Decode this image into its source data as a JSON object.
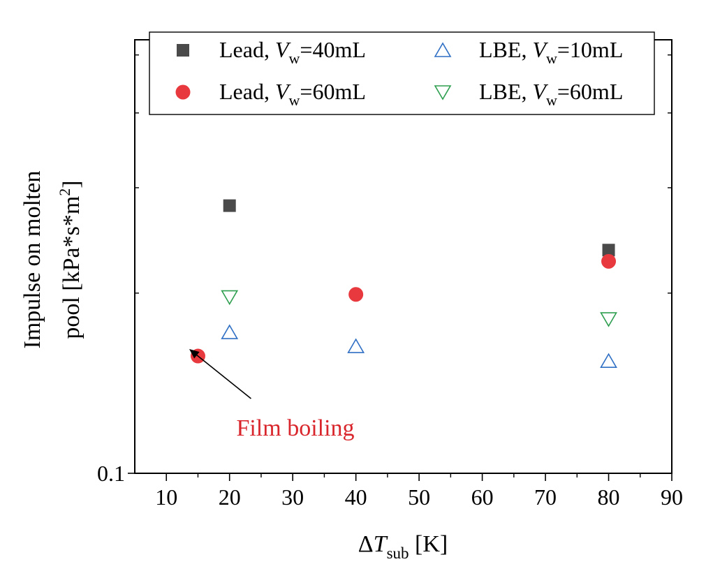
{
  "chart_data": {
    "type": "scatter",
    "xlabel": {
      "main": "ΔT",
      "sub": "sub",
      "unit": " [K]"
    },
    "ylabel": {
      "line1": "Impulse on molten",
      "line2_prefix": "pool [kPa*s*m",
      "line2_sup": "2",
      "line2_suffix": "]"
    },
    "x_ticks": [
      "10",
      "20",
      "30",
      "40",
      "50",
      "60",
      "70",
      "80",
      "90"
    ],
    "y_tick_labels": [
      {
        "label": "0.1",
        "value": 0.1
      }
    ],
    "xlim": [
      5,
      90
    ],
    "ylim_log": [
      0.1,
      0.53
    ],
    "y_scale": "log",
    "legend_position": "top",
    "series": [
      {
        "prefix": "Lead, ",
        "var": "V",
        "sub": "w",
        "suffix": "=40mL",
        "marker": "square",
        "color": "#4a4a4a",
        "points": [
          {
            "x": 20,
            "y": 0.28
          },
          {
            "x": 80,
            "y": 0.236
          }
        ]
      },
      {
        "prefix": "Lead, ",
        "var": "V",
        "sub": "w",
        "suffix": "=60mL",
        "marker": "circle",
        "color": "#e8393e",
        "points": [
          {
            "x": 15,
            "y": 0.157
          },
          {
            "x": 40,
            "y": 0.199
          },
          {
            "x": 80,
            "y": 0.226
          }
        ]
      },
      {
        "prefix": "LBE, ",
        "var": "V",
        "sub": "w",
        "suffix": "=10mL",
        "marker": "triangle-up",
        "color": "#2f6fc4",
        "points": [
          {
            "x": 20,
            "y": 0.172
          },
          {
            "x": 40,
            "y": 0.163
          },
          {
            "x": 80,
            "y": 0.154
          }
        ]
      },
      {
        "prefix": "LBE, ",
        "var": "V",
        "sub": "w",
        "suffix": "=60mL",
        "marker": "triangle-down",
        "color": "#2e9e4f",
        "points": [
          {
            "x": 20,
            "y": 0.197
          },
          {
            "x": 80,
            "y": 0.181
          }
        ]
      }
    ],
    "annotation": {
      "text": "Film boiling",
      "color": "#d9262c",
      "target": {
        "x": 15,
        "y": 0.157
      }
    }
  }
}
